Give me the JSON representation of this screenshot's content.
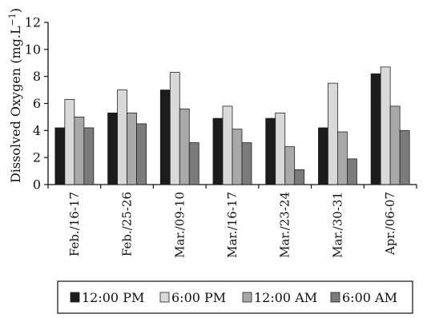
{
  "chart_data": {
    "type": "bar",
    "title": "",
    "ylabel": "Dissolved Oxygen (mg.L",
    "ylabel_sup": "−1",
    "ylabel_close": ")",
    "xlabel": "",
    "ylim": [
      0,
      12
    ],
    "yticks": [
      "0",
      "2",
      "4",
      "6",
      "8",
      "10",
      "12"
    ],
    "categories": [
      "Feb./16-17",
      "Feb./25-26",
      "Mar./09-10",
      "Mar./16-17",
      "Mar./23-24",
      "Mar./30-31",
      "Apr./06-07"
    ],
    "series": [
      {
        "name": "12:00 PM",
        "color": "#1c1c1c",
        "values": [
          4.2,
          5.3,
          7.0,
          4.9,
          4.9,
          4.2,
          8.2
        ]
      },
      {
        "name": "6:00 PM",
        "color": "#d9d9d9",
        "values": [
          6.3,
          7.0,
          8.3,
          5.8,
          5.3,
          7.5,
          8.7
        ]
      },
      {
        "name": "12:00 AM",
        "color": "#a9a9a9",
        "values": [
          5.0,
          5.3,
          5.6,
          4.1,
          2.8,
          3.9,
          5.8
        ]
      },
      {
        "name": "6:00 AM",
        "color": "#7b7b7b",
        "values": [
          4.2,
          4.5,
          3.1,
          3.1,
          1.1,
          1.9,
          4.0
        ]
      }
    ],
    "grid": false,
    "legend_position": "bottom"
  }
}
